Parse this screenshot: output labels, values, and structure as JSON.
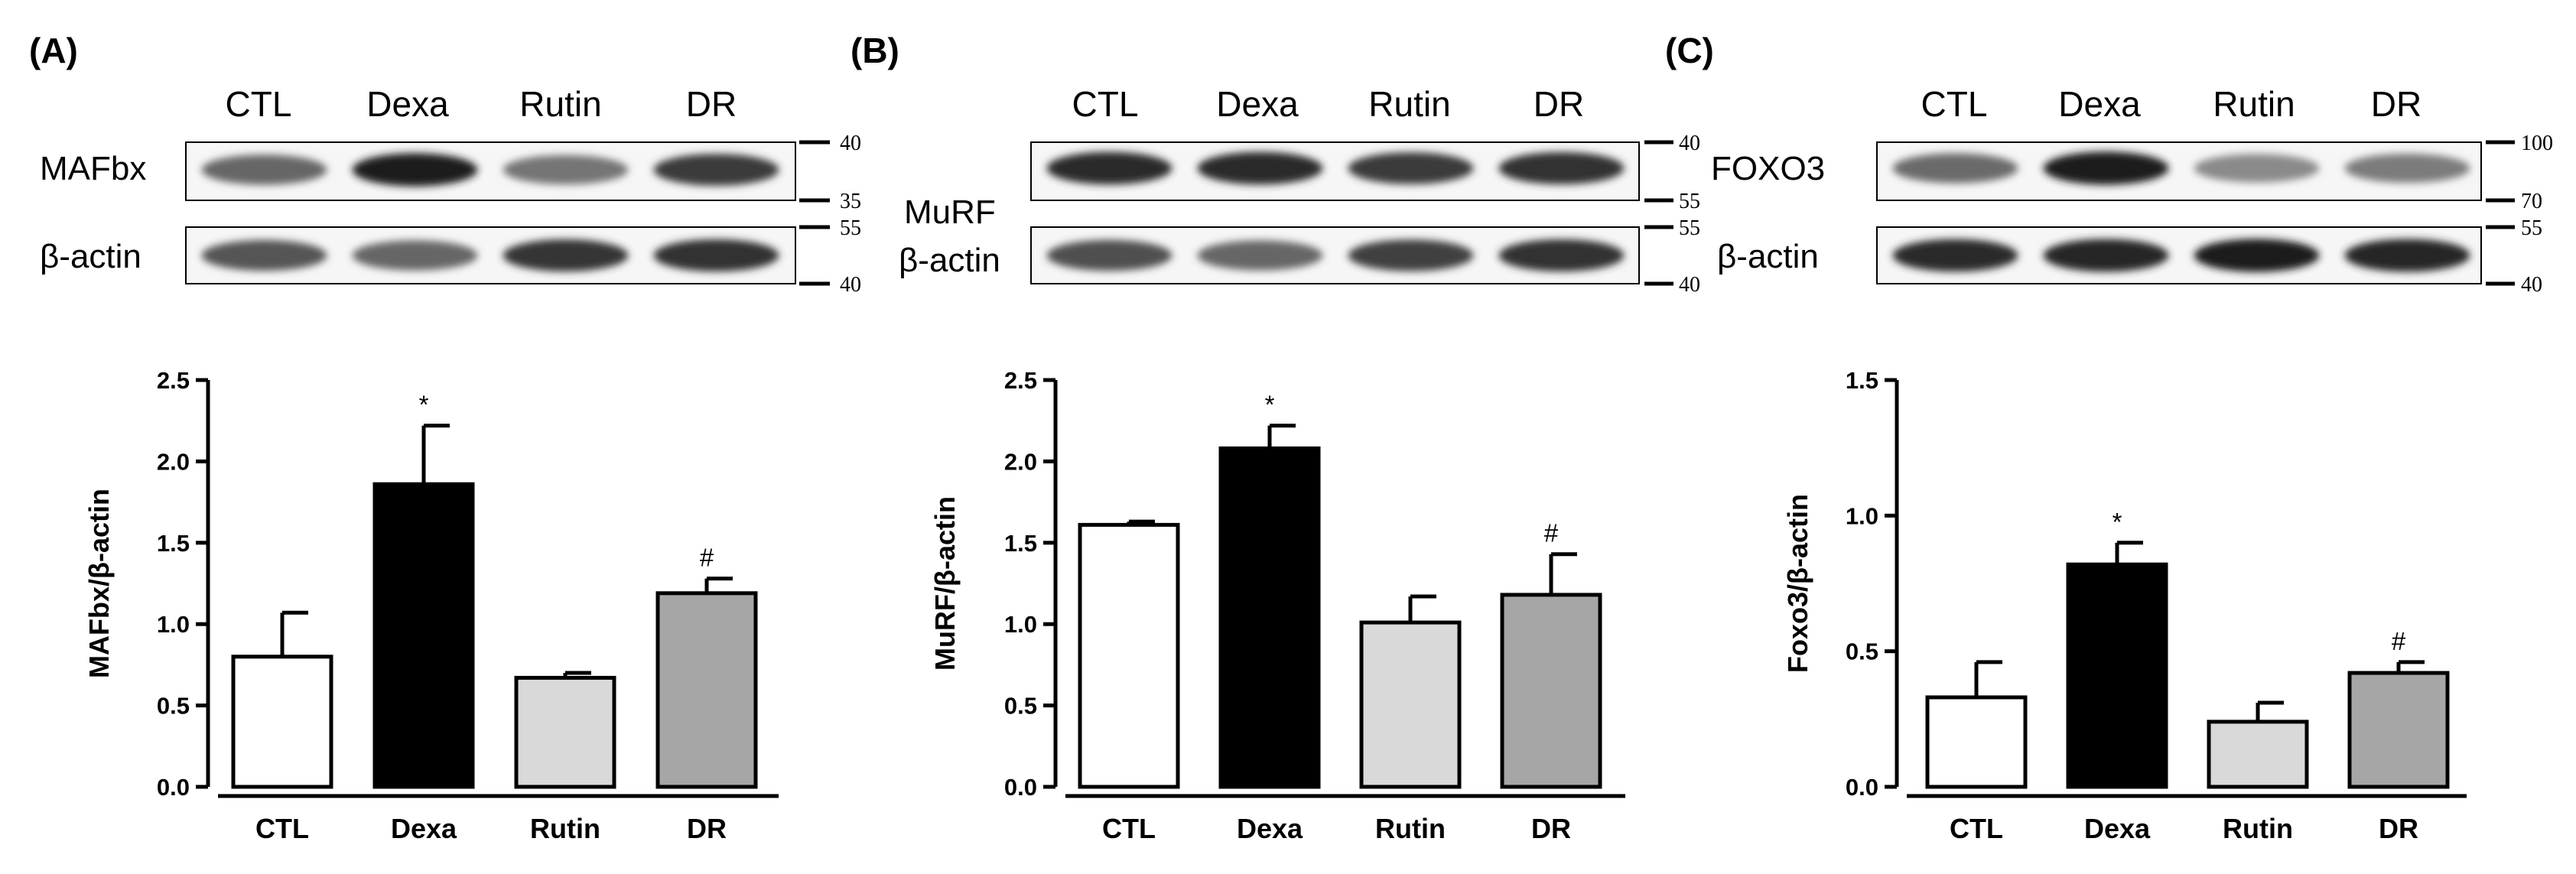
{
  "panels": [
    {
      "label": "(A)",
      "lanes": [
        "CTL",
        "Dexa",
        "Rutin",
        "DR"
      ],
      "blot_rows": [
        {
          "label": "MAFbx",
          "markers": [
            "40",
            "35"
          ],
          "intensity": [
            0.62,
            0.95,
            0.55,
            0.82
          ]
        },
        {
          "label": "β-actin",
          "markers": [
            "55",
            "40"
          ],
          "intensity": [
            0.7,
            0.62,
            0.85,
            0.86
          ]
        }
      ]
    },
    {
      "label": "(B)",
      "lanes": [
        "CTL",
        "Dexa",
        "Rutin",
        "DR"
      ],
      "blot_rows": [
        {
          "label": "MuRF",
          "markers": [
            "40",
            "55"
          ],
          "intensity": [
            0.9,
            0.9,
            0.82,
            0.86
          ]
        },
        {
          "label": "β-actin",
          "markers": [
            "55",
            "40"
          ],
          "intensity": [
            0.72,
            0.62,
            0.8,
            0.86
          ]
        }
      ]
    },
    {
      "label": "(C)",
      "lanes": [
        "CTL",
        "Dexa",
        "Rutin",
        "DR"
      ],
      "blot_rows": [
        {
          "label": "FOXO3",
          "markers": [
            "100",
            "70"
          ],
          "intensity": [
            0.6,
            0.95,
            0.45,
            0.52
          ]
        },
        {
          "label": "β-actin",
          "markers": [
            "55",
            "40"
          ],
          "intensity": [
            0.9,
            0.92,
            0.95,
            0.92
          ]
        }
      ]
    }
  ],
  "chart_data": [
    {
      "type": "bar",
      "categories": [
        "CTL",
        "Dexa",
        "Rutin",
        "DR"
      ],
      "values": [
        0.8,
        1.86,
        0.67,
        1.19
      ],
      "errors": [
        0.27,
        0.36,
        0.03,
        0.09
      ],
      "significance": [
        "",
        "*",
        "",
        "#"
      ],
      "bar_colors": [
        "#ffffff",
        "#000000",
        "#d9d9d9",
        "#a6a6a6"
      ],
      "ylabel": "MAFbx/β-actin",
      "ylim": [
        0,
        2.5
      ],
      "yticks": [
        "0.0",
        "0.5",
        "1.0",
        "1.5",
        "2.0",
        "2.5"
      ]
    },
    {
      "type": "bar",
      "categories": [
        "CTL",
        "Dexa",
        "Rutin",
        "DR"
      ],
      "values": [
        1.61,
        2.08,
        1.01,
        1.18
      ],
      "errors": [
        0.02,
        0.14,
        0.16,
        0.25
      ],
      "significance": [
        "",
        "*",
        "",
        "#"
      ],
      "bar_colors": [
        "#ffffff",
        "#000000",
        "#d9d9d9",
        "#a6a6a6"
      ],
      "ylabel": "MuRF/β-actin",
      "ylim": [
        0,
        2.5
      ],
      "yticks": [
        "0.0",
        "0.5",
        "1.0",
        "1.5",
        "2.0",
        "2.5"
      ]
    },
    {
      "type": "bar",
      "categories": [
        "CTL",
        "Dexa",
        "Rutin",
        "DR"
      ],
      "values": [
        0.33,
        0.82,
        0.24,
        0.42
      ],
      "errors": [
        0.13,
        0.08,
        0.07,
        0.04
      ],
      "significance": [
        "",
        "*",
        "",
        "#"
      ],
      "bar_colors": [
        "#ffffff",
        "#000000",
        "#d9d9d9",
        "#a6a6a6"
      ],
      "ylabel": "Foxo3/β-actin",
      "ylim": [
        0,
        1.5
      ],
      "yticks": [
        "0.0",
        "0.5",
        "1.0",
        "1.5"
      ]
    }
  ]
}
